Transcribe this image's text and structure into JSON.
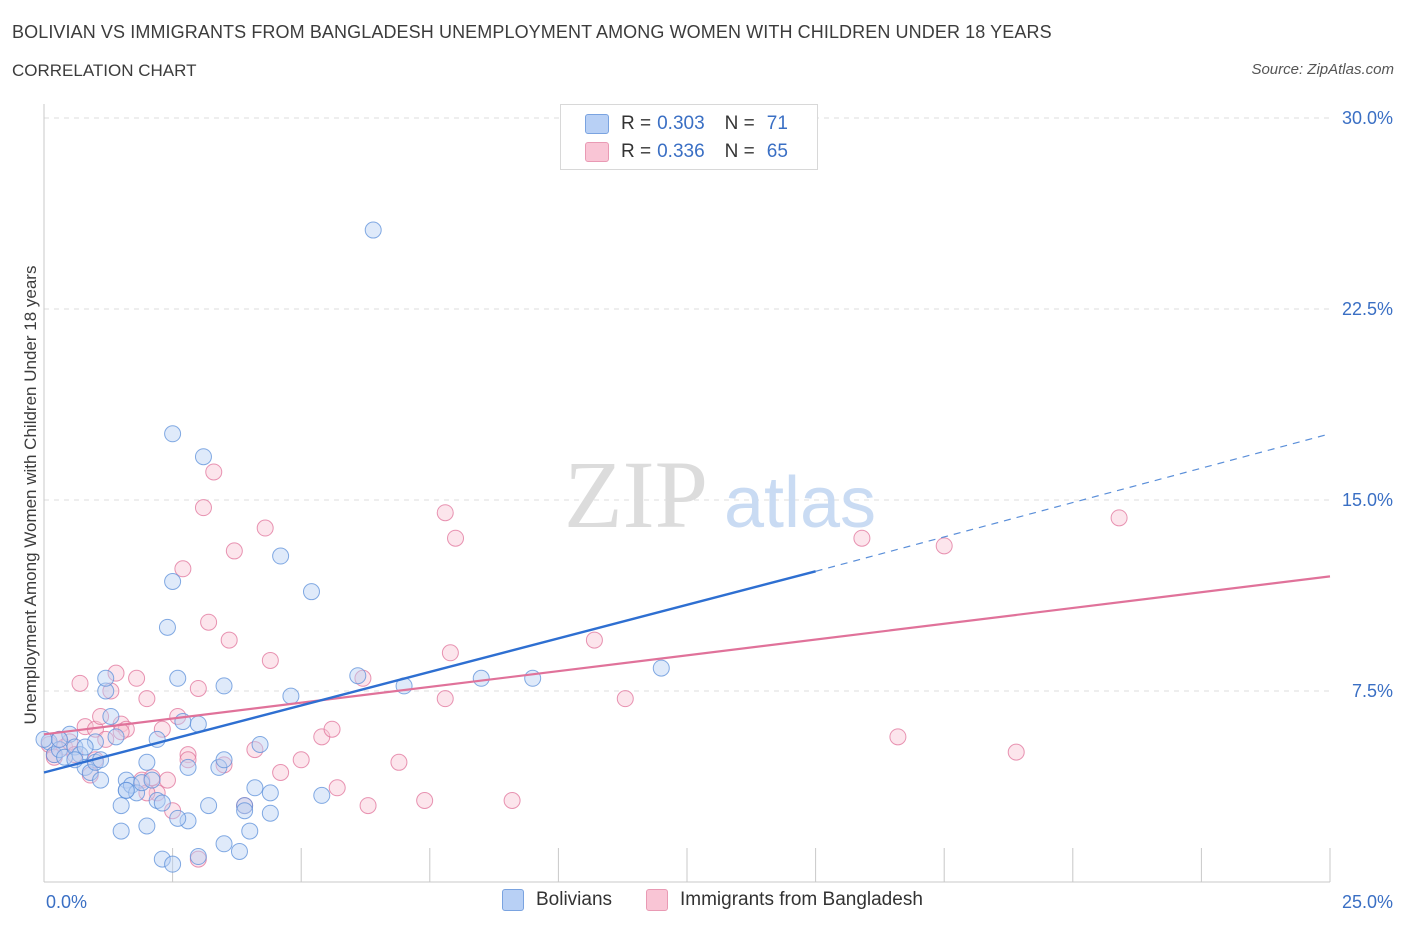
{
  "header": {
    "title": "BOLIVIAN VS IMMIGRANTS FROM BANGLADESH UNEMPLOYMENT AMONG WOMEN WITH CHILDREN UNDER 18 YEARS",
    "subtitle": "CORRELATION CHART",
    "source": "Source: ZipAtlas.com"
  },
  "watermark": {
    "zip": "ZIP",
    "atlas": "atlas"
  },
  "legend_top": {
    "rows": [
      {
        "r_label": "R =",
        "r_value": "0.303",
        "n_label": "N =",
        "n_value": "71",
        "color": "#b8d0f5"
      },
      {
        "r_label": "R =",
        "r_value": "0.336",
        "n_label": "N =",
        "n_value": "65",
        "color": "#f9c5d5"
      }
    ]
  },
  "legend_bottom": {
    "items": [
      {
        "label": "Bolivians",
        "color": "#b8d0f5"
      },
      {
        "label": "Immigrants from Bangladesh",
        "color": "#f9c5d5"
      }
    ]
  },
  "chart_data": {
    "type": "scatter",
    "title": "BOLIVIAN VS IMMIGRANTS FROM BANGLADESH UNEMPLOYMENT AMONG WOMEN WITH CHILDREN UNDER 18 YEARS",
    "xlabel": "",
    "ylabel": "Unemployment Among Women with Children Under 18 years",
    "xlim": [
      0,
      25
    ],
    "ylim": [
      0,
      30
    ],
    "x_tick_labels": [
      "0.0%",
      "25.0%"
    ],
    "y_ticks": [
      7.5,
      15.0,
      22.5,
      30.0
    ],
    "y_tick_labels": [
      "7.5%",
      "15.0%",
      "22.5%",
      "30.0%"
    ],
    "grid": "horizontal dashed",
    "legend_position": "top-center",
    "series": [
      {
        "name": "Bolivians",
        "color": "#5b8fd9",
        "fill": "#b8d0f5",
        "trend": {
          "x": [
            0,
            15
          ],
          "y": [
            4.3,
            12.2
          ],
          "dashed_extension": {
            "x": [
              15,
              25
            ],
            "y": [
              12.2,
              17.6
            ]
          }
        },
        "points": [
          [
            0.1,
            5.5
          ],
          [
            0.2,
            5.0
          ],
          [
            0.3,
            5.2
          ],
          [
            0.4,
            4.9
          ],
          [
            0.5,
            5.8
          ],
          [
            0.6,
            5.3
          ],
          [
            0.7,
            5.0
          ],
          [
            0.8,
            4.5
          ],
          [
            0.9,
            4.3
          ],
          [
            1.0,
            4.7
          ],
          [
            1.0,
            5.5
          ],
          [
            1.1,
            4.8
          ],
          [
            1.2,
            7.5
          ],
          [
            1.2,
            8.0
          ],
          [
            1.3,
            6.5
          ],
          [
            1.4,
            5.7
          ],
          [
            1.1,
            4.0
          ],
          [
            1.5,
            3.0
          ],
          [
            1.6,
            4.0
          ],
          [
            1.6,
            3.6
          ],
          [
            1.7,
            3.8
          ],
          [
            1.8,
            3.5
          ],
          [
            1.9,
            3.9
          ],
          [
            2.0,
            4.7
          ],
          [
            2.1,
            4.0
          ],
          [
            2.2,
            3.2
          ],
          [
            2.3,
            3.1
          ],
          [
            2.2,
            5.6
          ],
          [
            2.4,
            10.0
          ],
          [
            2.5,
            11.8
          ],
          [
            2.5,
            17.6
          ],
          [
            2.6,
            8.0
          ],
          [
            2.7,
            6.3
          ],
          [
            2.8,
            4.5
          ],
          [
            3.0,
            6.2
          ],
          [
            3.1,
            16.7
          ],
          [
            3.2,
            3.0
          ],
          [
            3.4,
            4.5
          ],
          [
            3.5,
            4.8
          ],
          [
            3.5,
            7.7
          ],
          [
            3.5,
            1.5
          ],
          [
            3.8,
            1.2
          ],
          [
            3.9,
            3.0
          ],
          [
            4.0,
            2.0
          ],
          [
            4.2,
            5.4
          ],
          [
            4.4,
            3.5
          ],
          [
            4.6,
            12.8
          ],
          [
            4.8,
            7.3
          ],
          [
            5.2,
            11.4
          ],
          [
            5.4,
            3.4
          ],
          [
            6.1,
            8.1
          ],
          [
            6.4,
            25.6
          ],
          [
            7.0,
            7.7
          ],
          [
            8.5,
            8.0
          ],
          [
            9.5,
            8.0
          ],
          [
            12.0,
            8.4
          ],
          [
            1.5,
            2.0
          ],
          [
            2.0,
            2.2
          ],
          [
            2.3,
            0.9
          ],
          [
            2.8,
            2.4
          ],
          [
            3.0,
            1.0
          ],
          [
            3.9,
            2.8
          ],
          [
            4.1,
            3.7
          ],
          [
            4.4,
            2.7
          ],
          [
            0.6,
            4.8
          ],
          [
            0.8,
            5.3
          ],
          [
            1.6,
            3.6
          ],
          [
            2.5,
            0.7
          ],
          [
            2.6,
            2.5
          ],
          [
            0.3,
            5.6
          ],
          [
            0.0,
            5.6
          ]
        ]
      },
      {
        "name": "Immigrants from Bangladesh",
        "color": "#e0729a",
        "fill": "#f9c5d5",
        "trend": {
          "x": [
            0,
            25
          ],
          "y": [
            5.8,
            12.0
          ]
        },
        "points": [
          [
            0.1,
            5.4
          ],
          [
            0.2,
            5.0
          ],
          [
            0.3,
            5.6
          ],
          [
            0.4,
            5.3
          ],
          [
            0.5,
            5.5
          ],
          [
            0.7,
            7.8
          ],
          [
            0.8,
            6.1
          ],
          [
            0.9,
            4.2
          ],
          [
            1.0,
            6.0
          ],
          [
            1.1,
            6.5
          ],
          [
            1.2,
            5.6
          ],
          [
            1.3,
            7.5
          ],
          [
            1.4,
            8.2
          ],
          [
            1.5,
            6.2
          ],
          [
            1.6,
            6.0
          ],
          [
            1.8,
            8.0
          ],
          [
            1.9,
            4.0
          ],
          [
            2.0,
            7.2
          ],
          [
            2.1,
            4.1
          ],
          [
            2.2,
            3.5
          ],
          [
            2.3,
            6.0
          ],
          [
            2.4,
            4.0
          ],
          [
            2.5,
            2.8
          ],
          [
            2.6,
            6.5
          ],
          [
            2.7,
            12.3
          ],
          [
            2.8,
            5.0
          ],
          [
            3.0,
            7.6
          ],
          [
            3.0,
            0.9
          ],
          [
            3.1,
            14.7
          ],
          [
            3.2,
            10.2
          ],
          [
            3.3,
            16.1
          ],
          [
            3.5,
            4.6
          ],
          [
            3.6,
            9.5
          ],
          [
            3.7,
            13.0
          ],
          [
            3.9,
            3.0
          ],
          [
            4.1,
            5.2
          ],
          [
            4.3,
            13.9
          ],
          [
            4.4,
            8.7
          ],
          [
            4.6,
            4.3
          ],
          [
            5.0,
            4.8
          ],
          [
            5.4,
            5.7
          ],
          [
            5.6,
            6.0
          ],
          [
            5.7,
            3.7
          ],
          [
            6.2,
            8.0
          ],
          [
            6.3,
            3.0
          ],
          [
            6.9,
            4.7
          ],
          [
            7.4,
            3.2
          ],
          [
            7.8,
            14.5
          ],
          [
            7.8,
            7.2
          ],
          [
            7.9,
            9.0
          ],
          [
            8.0,
            13.5
          ],
          [
            9.1,
            3.2
          ],
          [
            10.7,
            9.5
          ],
          [
            11.3,
            7.2
          ],
          [
            15.9,
            13.5
          ],
          [
            16.6,
            5.7
          ],
          [
            17.5,
            13.2
          ],
          [
            18.9,
            5.1
          ],
          [
            20.9,
            14.3
          ],
          [
            0.6,
            5.0
          ],
          [
            1.0,
            4.8
          ],
          [
            1.5,
            5.9
          ],
          [
            2.0,
            3.5
          ],
          [
            2.8,
            4.8
          ],
          [
            0.2,
            4.9
          ]
        ]
      }
    ]
  }
}
